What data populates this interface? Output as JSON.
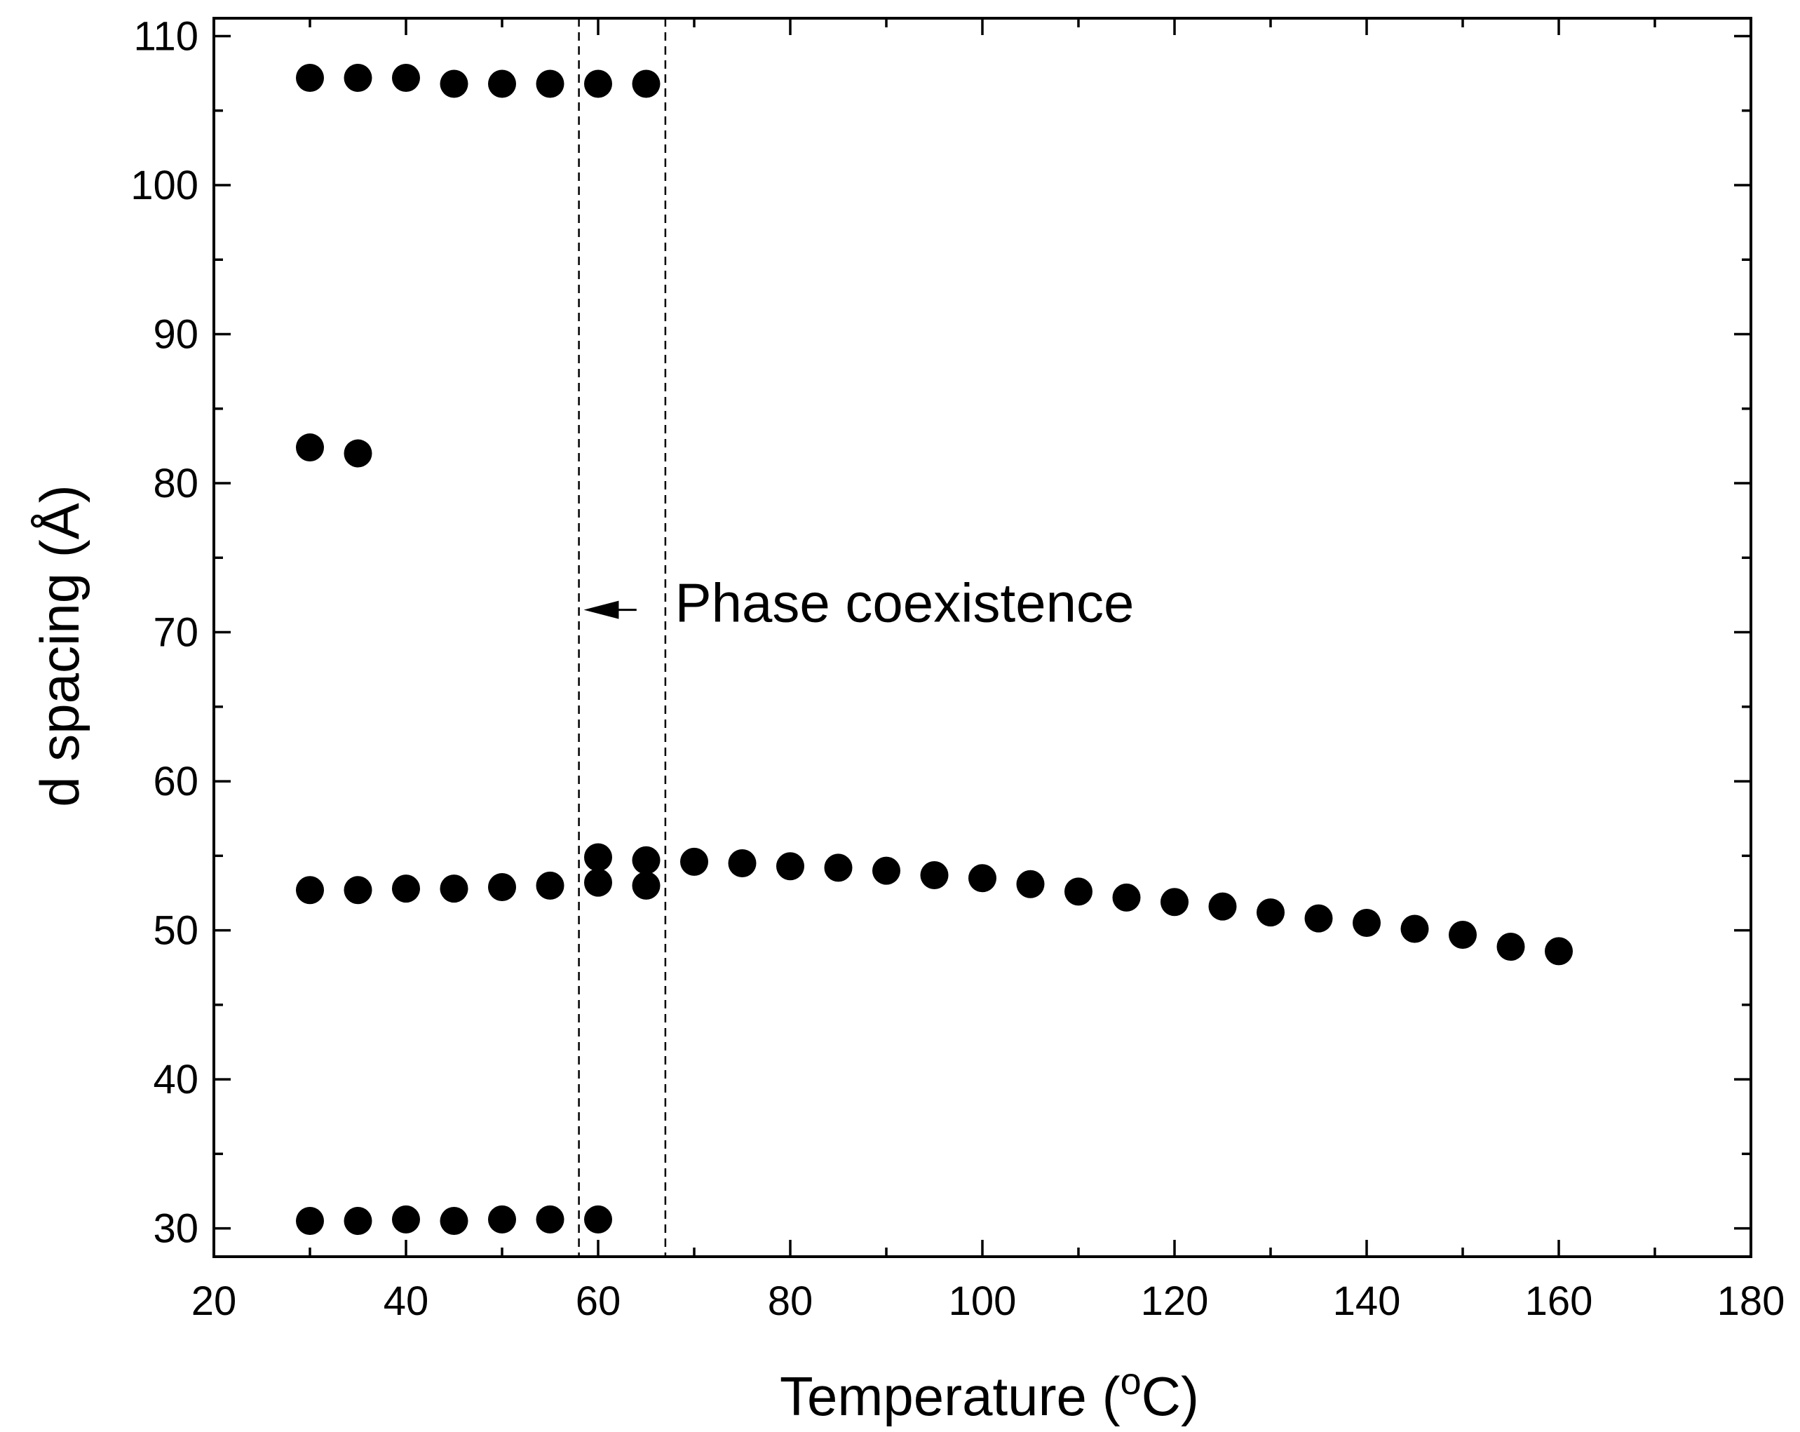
{
  "chart_data": {
    "type": "scatter",
    "xlabel": "Temperature (",
    "xlabel_sup": "o",
    "xlabel_suffix": "C)",
    "ylabel": "d spacing (Å)",
    "xlim": [
      20,
      180
    ],
    "ylim": [
      28.1,
      111.2
    ],
    "xticks": [
      20,
      40,
      60,
      80,
      100,
      120,
      140,
      160,
      180
    ],
    "yticks": [
      30,
      40,
      50,
      60,
      70,
      80,
      90,
      100,
      110
    ],
    "x_minor_step": 10,
    "y_minor_step": 5,
    "grid": false,
    "legend": "none",
    "marker_color": "#000000",
    "vlines": [
      58,
      67
    ],
    "annotation": {
      "text": "Phase coexistence",
      "arrow_from": [
        64,
        71.5
      ],
      "arrow_to": [
        58.5,
        71.5
      ],
      "text_at": [
        68,
        71.5
      ]
    },
    "series": [
      {
        "x": [
          30,
          35,
          40,
          45,
          50,
          55,
          60,
          65
        ],
        "y": [
          107.2,
          107.2,
          107.2,
          106.8,
          106.8,
          106.8,
          106.8,
          106.8
        ]
      },
      {
        "x": [
          30,
          35
        ],
        "y": [
          82.4,
          82.0
        ]
      },
      {
        "x": [
          30,
          35,
          40,
          45,
          50,
          55,
          60,
          65
        ],
        "y": [
          52.7,
          52.7,
          52.8,
          52.8,
          52.9,
          53.0,
          53.2,
          53.0
        ]
      },
      {
        "x": [
          60,
          65,
          70,
          75,
          80,
          85,
          90,
          95,
          100,
          105,
          110,
          115,
          120,
          125,
          130,
          135,
          140,
          145,
          150,
          155,
          160
        ],
        "y": [
          54.9,
          54.7,
          54.6,
          54.5,
          54.3,
          54.2,
          54.0,
          53.7,
          53.5,
          53.1,
          52.6,
          52.2,
          51.9,
          51.6,
          51.2,
          50.8,
          50.5,
          50.1,
          49.7,
          48.9,
          48.6
        ]
      },
      {
        "x": [
          30,
          35,
          40,
          45,
          50,
          55,
          60
        ],
        "y": [
          30.5,
          30.5,
          30.6,
          30.5,
          30.6,
          30.6,
          30.6
        ]
      }
    ]
  }
}
